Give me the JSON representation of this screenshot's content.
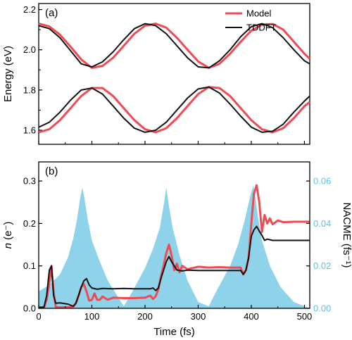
{
  "chart_data": [
    {
      "panel": "(a)",
      "type": "line",
      "xlabel": "",
      "ylabel": "Energy (eV)",
      "xlim": [
        0,
        510
      ],
      "ylim": [
        1.53,
        2.23
      ],
      "yticks": [
        "1.6",
        "1.8",
        "2.0",
        "2.2"
      ],
      "legend": {
        "position": "top-right",
        "entries": [
          "Model",
          "TDDFT"
        ]
      },
      "colors": {
        "Model": "#ee4b55",
        "TDDFT": "#111111"
      },
      "series": [
        {
          "name": "Model",
          "x": [
            0,
            20,
            40,
            60,
            80,
            100,
            120,
            140,
            160,
            180,
            200,
            220,
            240,
            260,
            280,
            300,
            320,
            340,
            360,
            380,
            400,
            420,
            440,
            460,
            480,
            500,
            510
          ],
          "y": [
            2.13,
            2.116,
            2.075,
            2.015,
            1.952,
            1.91,
            1.92,
            1.96,
            2.02,
            2.08,
            2.12,
            2.13,
            2.11,
            2.06,
            2.0,
            1.942,
            1.91,
            1.93,
            1.98,
            2.04,
            2.095,
            2.125,
            2.128,
            2.1,
            2.04,
            1.98,
            1.955
          ]
        },
        {
          "name": "TDDFT",
          "x": [
            0,
            20,
            40,
            60,
            80,
            100,
            120,
            140,
            160,
            180,
            200,
            220,
            240,
            260,
            280,
            300,
            320,
            340,
            360,
            380,
            400,
            420,
            440,
            460,
            480,
            500,
            510
          ],
          "y": [
            2.12,
            2.105,
            2.06,
            1.995,
            1.93,
            1.915,
            1.94,
            1.99,
            2.05,
            2.105,
            2.13,
            2.12,
            2.08,
            2.02,
            1.96,
            1.915,
            1.91,
            1.945,
            2.0,
            2.065,
            2.115,
            2.13,
            2.11,
            2.06,
            2.0,
            1.945,
            1.93
          ]
        },
        {
          "name": "Model",
          "x": [
            0,
            20,
            40,
            60,
            80,
            100,
            120,
            140,
            160,
            180,
            200,
            220,
            240,
            260,
            280,
            300,
            320,
            340,
            360,
            380,
            400,
            420,
            440,
            460,
            480,
            500,
            510
          ],
          "y": [
            1.59,
            1.605,
            1.65,
            1.71,
            1.77,
            1.81,
            1.81,
            1.77,
            1.71,
            1.65,
            1.605,
            1.59,
            1.61,
            1.66,
            1.72,
            1.78,
            1.815,
            1.81,
            1.77,
            1.71,
            1.65,
            1.605,
            1.59,
            1.61,
            1.66,
            1.72,
            1.74
          ]
        },
        {
          "name": "TDDFT",
          "x": [
            0,
            20,
            40,
            60,
            80,
            100,
            120,
            140,
            160,
            180,
            200,
            220,
            240,
            260,
            280,
            300,
            320,
            340,
            360,
            380,
            400,
            420,
            440,
            460,
            480,
            500,
            510
          ],
          "y": [
            1.615,
            1.64,
            1.69,
            1.75,
            1.8,
            1.81,
            1.78,
            1.72,
            1.66,
            1.61,
            1.59,
            1.6,
            1.64,
            1.7,
            1.76,
            1.805,
            1.815,
            1.785,
            1.73,
            1.67,
            1.615,
            1.59,
            1.595,
            1.63,
            1.69,
            1.745,
            1.77
          ]
        }
      ]
    },
    {
      "panel": "(b)",
      "type": "line",
      "xlabel": "Time (fs)",
      "ylabel": "n (e⁻)",
      "ylabel_right": "NACME (fs⁻¹)",
      "xlim": [
        0,
        510
      ],
      "ylim": [
        0,
        0.345
      ],
      "ylim_right": [
        0,
        0.069
      ],
      "xticks": [
        "0",
        "100",
        "200",
        "300",
        "400",
        "500"
      ],
      "yticks": [
        "0.0",
        "0.1",
        "0.2",
        "0.3"
      ],
      "yticks_right": [
        "0.00",
        "0.02",
        "0.04",
        "0.06"
      ],
      "colors": {
        "Model": "#ee4b55",
        "TDDFT": "#111111",
        "NACME": "#8fd3ea"
      },
      "series": [
        {
          "name": "NACME",
          "type": "area",
          "axis": "right",
          "x": [
            0,
            20,
            40,
            55,
            65,
            72,
            78,
            82,
            86,
            92,
            100,
            115,
            130,
            150,
            160,
            170,
            185,
            200,
            215,
            228,
            236,
            240,
            244,
            252,
            265,
            280,
            300,
            320,
            330,
            345,
            360,
            375,
            388,
            398,
            404,
            408,
            412,
            420,
            435,
            455,
            480,
            500,
            510
          ],
          "y": [
            0.008,
            0.011,
            0.016,
            0.024,
            0.033,
            0.042,
            0.052,
            0.057,
            0.052,
            0.042,
            0.032,
            0.022,
            0.013,
            0.005,
            0.001,
            0.005,
            0.012,
            0.019,
            0.028,
            0.038,
            0.05,
            0.057,
            0.05,
            0.038,
            0.025,
            0.013,
            0.003,
            0.001,
            0.006,
            0.013,
            0.02,
            0.03,
            0.042,
            0.053,
            0.058,
            0.052,
            0.044,
            0.032,
            0.02,
            0.01,
            0.003,
            0.001,
            0.0
          ]
        },
        {
          "name": "Model",
          "x": [
            0,
            10,
            15,
            20,
            24,
            28,
            32,
            40,
            55,
            65,
            70,
            75,
            80,
            85,
            90,
            95,
            100,
            105,
            110,
            115,
            120,
            130,
            140,
            160,
            180,
            200,
            210,
            215,
            220,
            225,
            230,
            235,
            240,
            245,
            250,
            255,
            260,
            265,
            270,
            280,
            300,
            320,
            340,
            360,
            380,
            385,
            390,
            395,
            400,
            405,
            410,
            415,
            420,
            425,
            430,
            435,
            440,
            450,
            460,
            480,
            500,
            510
          ],
          "y": [
            0.002,
            0.002,
            0.02,
            0.06,
            0.1,
            0.04,
            0.003,
            0.002,
            0.003,
            0.004,
            0.012,
            0.03,
            0.05,
            0.057,
            0.04,
            0.018,
            0.02,
            0.035,
            0.02,
            0.02,
            0.028,
            0.02,
            0.025,
            0.024,
            0.024,
            0.025,
            0.03,
            0.022,
            0.028,
            0.045,
            0.075,
            0.1,
            0.13,
            0.15,
            0.125,
            0.09,
            0.105,
            0.085,
            0.1,
            0.092,
            0.098,
            0.096,
            0.097,
            0.096,
            0.096,
            0.08,
            0.09,
            0.12,
            0.2,
            0.27,
            0.29,
            0.25,
            0.18,
            0.22,
            0.2,
            0.212,
            0.198,
            0.207,
            0.203,
            0.204,
            0.204,
            0.204
          ]
        },
        {
          "name": "TDDFT",
          "x": [
            0,
            10,
            15,
            20,
            24,
            28,
            32,
            40,
            55,
            65,
            70,
            75,
            80,
            85,
            90,
            95,
            100,
            110,
            120,
            140,
            160,
            180,
            200,
            210,
            215,
            220,
            225,
            230,
            235,
            240,
            245,
            250,
            255,
            260,
            270,
            280,
            300,
            320,
            340,
            360,
            380,
            385,
            390,
            395,
            400,
            405,
            410,
            415,
            420,
            425,
            430,
            440,
            460,
            480,
            500,
            510
          ],
          "y": [
            0.002,
            0.003,
            0.03,
            0.09,
            0.1,
            0.03,
            0.012,
            0.013,
            0.01,
            0.005,
            0.012,
            0.03,
            0.05,
            0.065,
            0.07,
            0.055,
            0.048,
            0.045,
            0.047,
            0.046,
            0.047,
            0.046,
            0.046,
            0.046,
            0.048,
            0.042,
            0.048,
            0.07,
            0.09,
            0.11,
            0.122,
            0.11,
            0.1,
            0.09,
            0.088,
            0.09,
            0.089,
            0.089,
            0.089,
            0.089,
            0.089,
            0.08,
            0.09,
            0.12,
            0.17,
            0.185,
            0.193,
            0.182,
            0.172,
            0.16,
            0.163,
            0.16,
            0.16,
            0.16,
            0.16,
            0.16
          ]
        }
      ]
    }
  ]
}
